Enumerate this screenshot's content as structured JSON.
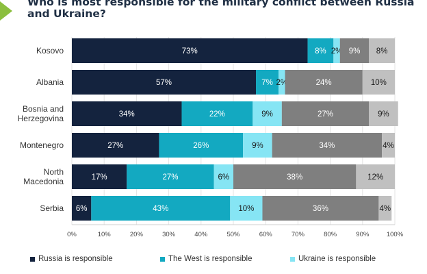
{
  "title": "Who is most responsible for the military conflict between Russia and Ukraine?",
  "colors": {
    "accent": "#8cbf3f",
    "russia": "#14233e",
    "west": "#13a9c1",
    "ukraine": "#86e5f4",
    "other_dark": "#7f7f7f",
    "other_light": "#c0c0c0"
  },
  "legend": [
    {
      "label": "Russia is responsible",
      "color": "#14233e"
    },
    {
      "label": "The West is responsible",
      "color": "#13a9c1"
    },
    {
      "label": "Ukraine is responsible",
      "color": "#86e5f4"
    }
  ],
  "chart_data": {
    "type": "bar",
    "orientation": "horizontal",
    "stacked": true,
    "title": "Who is most responsible for the military conflict between Russia and Ukraine?",
    "categories": [
      [
        "Kosovo"
      ],
      [
        "Albania"
      ],
      [
        "Bosnia and",
        "Herzegovina"
      ],
      [
        "Montenegro"
      ],
      [
        "North",
        "Macedonia"
      ],
      [
        "Serbia"
      ]
    ],
    "series": [
      {
        "name": "Russia is responsible",
        "values": [
          73,
          57,
          34,
          27,
          17,
          6
        ],
        "labels": [
          "73%",
          "57%",
          "34%",
          "27%",
          "17%",
          "6%"
        ]
      },
      {
        "name": "The West is responsible",
        "values": [
          8,
          7,
          22,
          26,
          27,
          43
        ],
        "labels": [
          "8%",
          "7%",
          "22%",
          "26%",
          "27%",
          "43%"
        ]
      },
      {
        "name": "Ukraine is responsible",
        "values": [
          2,
          2,
          9,
          9,
          6,
          10
        ],
        "labels": [
          "2%",
          "2%",
          "9%",
          "9%",
          "6%",
          "10%"
        ]
      },
      {
        "name": "",
        "values": [
          9,
          24,
          27,
          34,
          38,
          36
        ],
        "labels": [
          "9%",
          "24%",
          "27%",
          "34%",
          "38%",
          "36%"
        ]
      },
      {
        "name": "",
        "values": [
          8,
          10,
          9,
          4,
          12,
          4
        ],
        "labels": [
          "8%",
          "10%",
          "9%",
          "4%",
          "12%",
          "4%"
        ]
      }
    ],
    "xlim": [
      0,
      100
    ],
    "xticks": [
      "0%",
      "10%",
      "20%",
      "30%",
      "40%",
      "50%",
      "60%",
      "70%",
      "80%",
      "90%",
      "100%"
    ],
    "grid": true,
    "legend_position": "bottom"
  }
}
